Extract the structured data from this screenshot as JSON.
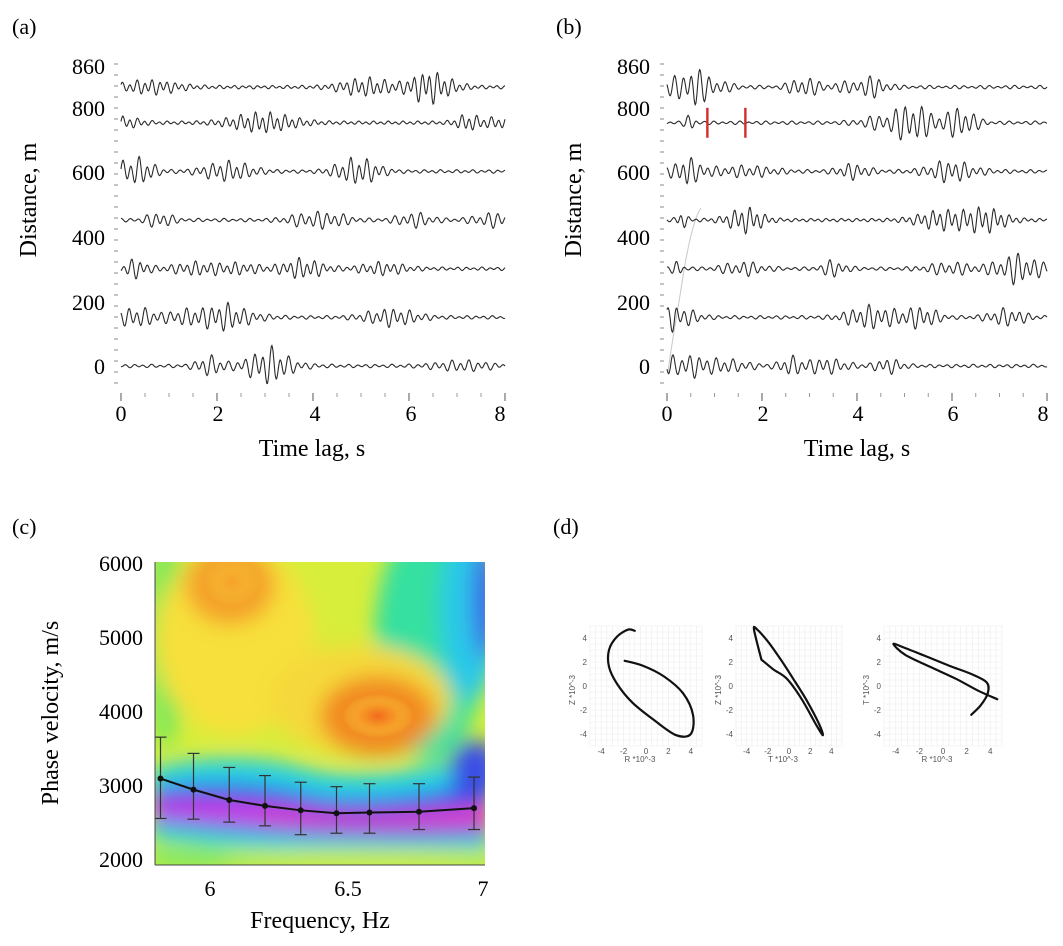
{
  "panels": {
    "a": {
      "letter": "(a)",
      "chart_data": {
        "type": "line",
        "xlabel": "Time lag, s",
        "ylabel": "Distance, m",
        "xlim": [
          0,
          8
        ],
        "ylim": [
          -25,
          880
        ],
        "x_ticks": [
          "0",
          "2",
          "4",
          "6",
          "8"
        ],
        "y_ticks": [
          "0",
          "200",
          "400",
          "600",
          "800",
          "860"
        ],
        "trace_offsets_m": [
          0,
          150,
          300,
          450,
          600,
          750,
          860
        ]
      }
    },
    "b": {
      "letter": "(b)",
      "chart_data": {
        "type": "line",
        "xlabel": "Time lag, s",
        "ylabel": "Distance, m",
        "xlim": [
          0,
          8
        ],
        "ylim": [
          -25,
          880
        ],
        "x_ticks": [
          "0",
          "2",
          "4",
          "6",
          "8"
        ],
        "y_ticks": [
          "0",
          "200",
          "400",
          "600",
          "800",
          "860"
        ],
        "trace_offsets_m": [
          0,
          150,
          300,
          450,
          600,
          750,
          860
        ],
        "window_markers_s": [
          0.85,
          1.65
        ],
        "window_trace_m": 750,
        "marker_color": "#d42b2b"
      }
    },
    "c": {
      "letter": "(c)",
      "chart_data": {
        "type": "heatmap",
        "xlabel": "Frequency, Hz",
        "ylabel": "Phase velocity, m/s",
        "xlim": [
          5.8,
          7.0
        ],
        "ylim": [
          1900,
          6000
        ],
        "x_ticks": [
          "6",
          "6.5",
          "7"
        ],
        "y_ticks": [
          "2000",
          "3000",
          "4000",
          "5000",
          "6000"
        ],
        "series": [
          {
            "type": "line",
            "x": [
              5.82,
              5.94,
              6.07,
              6.2,
              6.33,
              6.46,
              6.58,
              6.76,
              6.96
            ],
            "y": [
              3070,
              2920,
              2780,
              2700,
              2640,
              2600,
              2610,
              2620,
              2670
            ],
            "error_low": [
              2530,
              2520,
              2480,
              2430,
              2310,
              2330,
              2330,
              2380,
              2380
            ],
            "error_high": [
              3630,
              3410,
              3220,
              3110,
              3020,
              2960,
              3000,
              3000,
              3090
            ]
          }
        ]
      }
    },
    "d": {
      "letter": "(d)",
      "chart_data": [
        {
          "type": "line",
          "xlabel": "R *10^-3",
          "ylabel": "Z *10^-3",
          "xlim": [
            -5,
            5
          ],
          "ylim": [
            -5,
            5
          ],
          "x_ticks": [
            "-4",
            "-2",
            "0",
            "2",
            "4"
          ],
          "y_ticks": [
            "4",
            "2",
            "0",
            "-2",
            "-4"
          ],
          "x": [
            -1.0,
            -1.6,
            -2.6,
            -3.3,
            -3.3,
            -2.6,
            -1.2,
            0.8,
            2.7,
            4.0,
            4.2,
            3.3,
            1.6,
            -0.3,
            -1.9
          ],
          "y": [
            4.6,
            4.7,
            4.1,
            3.0,
            1.6,
            0.2,
            -1.4,
            -2.9,
            -4.1,
            -4.0,
            -2.4,
            -0.6,
            0.8,
            1.7,
            2.1
          ]
        },
        {
          "type": "line",
          "xlabel": "T *10^-3",
          "ylabel": "Z *10^-3",
          "xlim": [
            -5,
            5
          ],
          "ylim": [
            -5,
            5
          ],
          "x_ticks": [
            "-4",
            "-2",
            "0",
            "2",
            "4"
          ],
          "y_ticks": [
            "4",
            "2",
            "0",
            "-2",
            "-4"
          ],
          "x": [
            -2.6,
            -3.3,
            -3.0,
            -1.9,
            -0.7,
            0.4,
            1.6,
            2.8,
            3.2,
            2.6,
            1.2,
            -0.2,
            -1.5,
            -2.6
          ],
          "y": [
            2.2,
            4.7,
            4.7,
            3.6,
            2.1,
            0.6,
            -1.1,
            -3.1,
            -4.1,
            -3.3,
            -1.1,
            0.6,
            1.4,
            2.2
          ]
        },
        {
          "type": "line",
          "xlabel": "R *10^-3",
          "ylabel": "T *10^-3",
          "xlim": [
            -5,
            5
          ],
          "ylim": [
            -5,
            5
          ],
          "x_ticks": [
            "-4",
            "-2",
            "0",
            "2",
            "4"
          ],
          "y_ticks": [
            "4",
            "2",
            "0",
            "-2",
            "-4"
          ],
          "x": [
            2.4,
            3.2,
            3.8,
            3.7,
            2.4,
            0.5,
            -1.5,
            -3.3,
            -4.2,
            -3.2,
            -1.1,
            1.1,
            3.0,
            4.6
          ],
          "y": [
            -2.4,
            -1.6,
            -0.6,
            0.3,
            1.0,
            1.7,
            2.5,
            3.2,
            3.5,
            2.6,
            1.6,
            0.6,
            -0.4,
            -1.1
          ]
        }
      ]
    }
  }
}
